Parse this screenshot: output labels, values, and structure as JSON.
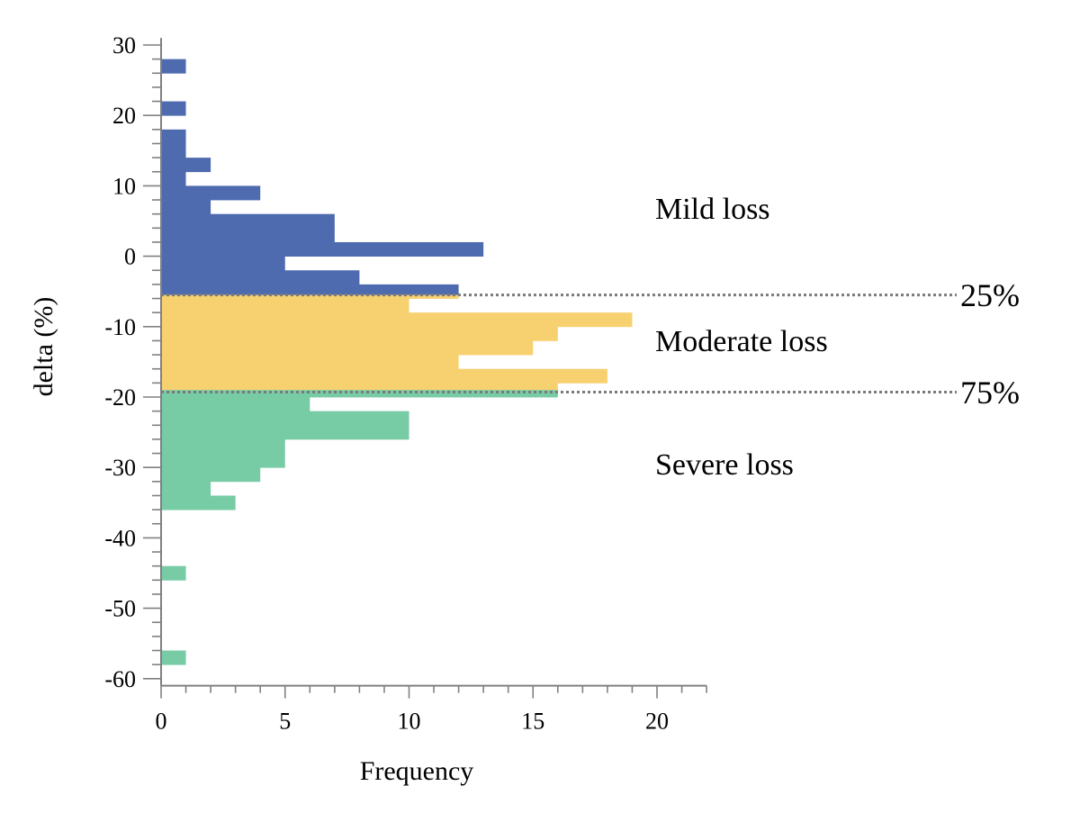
{
  "chart_data": {
    "type": "bar",
    "orientation": "horizontal",
    "xlabel": "Frequency",
    "ylabel": "delta (%)",
    "xlim": [
      0,
      22
    ],
    "ylim": [
      -61,
      31
    ],
    "x_ticks": [
      0,
      5,
      10,
      15,
      20
    ],
    "y_ticks": [
      30,
      20,
      10,
      0,
      -10,
      -20,
      -30,
      -40,
      -50,
      -60
    ],
    "bin_width": 2,
    "bins": [
      {
        "y": 26,
        "count": 1,
        "group": "mild"
      },
      {
        "y": 20,
        "count": 1,
        "group": "mild"
      },
      {
        "y": 16,
        "count": 1,
        "group": "mild"
      },
      {
        "y": 14,
        "count": 1,
        "group": "mild"
      },
      {
        "y": 12,
        "count": 2,
        "group": "mild"
      },
      {
        "y": 10,
        "count": 1,
        "group": "mild"
      },
      {
        "y": 8,
        "count": 4,
        "group": "mild"
      },
      {
        "y": 6,
        "count": 2,
        "group": "mild"
      },
      {
        "y": 4,
        "count": 7,
        "group": "mild"
      },
      {
        "y": 2,
        "count": 7,
        "group": "mild"
      },
      {
        "y": 0,
        "count": 13,
        "group": "mild"
      },
      {
        "y": -2,
        "count": 5,
        "group": "mild"
      },
      {
        "y": -4,
        "count": 8,
        "group": "mild"
      },
      {
        "y": -5.5,
        "count": 12,
        "group": "mild",
        "height": 1.5
      },
      {
        "y": -6,
        "count": 12,
        "group": "moderate",
        "height": 0.5
      },
      {
        "y": -8,
        "count": 10,
        "group": "moderate"
      },
      {
        "y": -10,
        "count": 19,
        "group": "moderate"
      },
      {
        "y": -12,
        "count": 16,
        "group": "moderate"
      },
      {
        "y": -14,
        "count": 15,
        "group": "moderate"
      },
      {
        "y": -16,
        "count": 12,
        "group": "moderate"
      },
      {
        "y": -18,
        "count": 18,
        "group": "moderate"
      },
      {
        "y": -19,
        "count": 16,
        "group": "moderate",
        "height": 1
      },
      {
        "y": -20,
        "count": 16,
        "group": "severe",
        "height": 1
      },
      {
        "y": -22,
        "count": 6,
        "group": "severe"
      },
      {
        "y": -24,
        "count": 10,
        "group": "severe"
      },
      {
        "y": -26,
        "count": 10,
        "group": "severe"
      },
      {
        "y": -28,
        "count": 5,
        "group": "severe"
      },
      {
        "y": -30,
        "count": 5,
        "group": "severe"
      },
      {
        "y": -32,
        "count": 4,
        "group": "severe"
      },
      {
        "y": -34,
        "count": 2,
        "group": "severe"
      },
      {
        "y": -36,
        "count": 3,
        "group": "severe"
      },
      {
        "y": -46,
        "count": 1,
        "group": "severe"
      },
      {
        "y": -58,
        "count": 1,
        "group": "severe"
      }
    ],
    "groups": {
      "mild": {
        "label": "Mild loss",
        "color": "#4f6bb0"
      },
      "moderate": {
        "label": "Moderate loss",
        "color": "#f7d170"
      },
      "severe": {
        "label": "Severe loss",
        "color": "#77cba5"
      }
    },
    "quantile_lines": [
      {
        "label": "25%",
        "y": -5.5
      },
      {
        "label": "75%",
        "y": -19.3
      }
    ]
  }
}
